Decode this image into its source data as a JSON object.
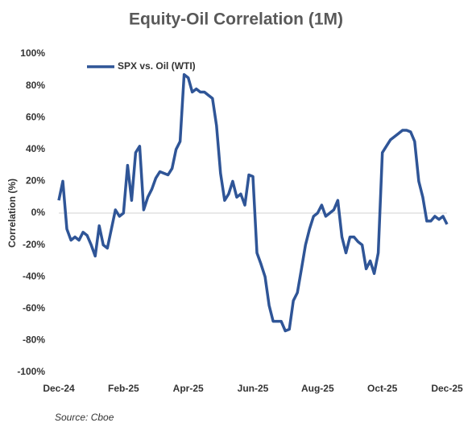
{
  "chart_data": {
    "type": "line",
    "title": "Equity-Oil Correlation (1M)",
    "y_label": "Correlation (%)",
    "source": "Source: Cboe",
    "categories": [
      "Dec-24",
      null,
      null,
      null,
      null,
      null,
      null,
      null,
      null,
      null,
      null,
      null,
      null,
      null,
      null,
      null,
      "Feb-25",
      null,
      null,
      null,
      null,
      null,
      null,
      null,
      null,
      null,
      null,
      null,
      null,
      null,
      null,
      null,
      "Apr-25",
      null,
      null,
      null,
      null,
      null,
      null,
      null,
      null,
      null,
      null,
      null,
      null,
      null,
      null,
      null,
      "Jun-25",
      null,
      null,
      null,
      null,
      null,
      null,
      null,
      null,
      null,
      null,
      null,
      null,
      null,
      null,
      null,
      "Aug-25",
      null,
      null,
      null,
      null,
      null,
      null,
      null,
      null,
      null,
      null,
      null,
      null,
      null,
      null,
      null,
      "Oct-25",
      null,
      null,
      null,
      null,
      null,
      null,
      null,
      null,
      null,
      null,
      null,
      null,
      null,
      null,
      null,
      "Dec-25"
    ],
    "series": [
      {
        "name": "SPX vs. Oil (WTI)",
        "color": "#2f5597",
        "values": [
          8,
          20,
          -10,
          -17,
          -15,
          -17,
          -12,
          -14,
          -20,
          -27,
          -8,
          -20,
          -22,
          -10,
          2,
          -2,
          0,
          30,
          8,
          38,
          42,
          2,
          10,
          15,
          22,
          26,
          25,
          24,
          28,
          40,
          45,
          87,
          85,
          76,
          78,
          76,
          76,
          74,
          72,
          55,
          25,
          8,
          12,
          20,
          10,
          12,
          5,
          24,
          23,
          -25,
          -32,
          -40,
          -58,
          -68,
          -68,
          -68,
          -74,
          -73,
          -55,
          -50,
          -35,
          -20,
          -10,
          -2,
          0,
          5,
          -2,
          0,
          2,
          8,
          -15,
          -25,
          -15,
          -15,
          -18,
          -20,
          -35,
          -30,
          -38,
          -25,
          38,
          42,
          46,
          48,
          50,
          52,
          52,
          51,
          45,
          20,
          10,
          -5,
          -5,
          -2,
          -4,
          -2,
          -7
        ]
      }
    ],
    "ylim": [
      -100,
      100
    ],
    "yticks": [
      {
        "value": 100,
        "label": "100%"
      },
      {
        "value": 80,
        "label": "80%"
      },
      {
        "value": 60,
        "label": "60%"
      },
      {
        "value": 40,
        "label": "40%"
      },
      {
        "value": 20,
        "label": "20%"
      },
      {
        "value": 0,
        "label": "0%"
      },
      {
        "value": -20,
        "label": "-20%"
      },
      {
        "value": -40,
        "label": "-40%"
      },
      {
        "value": -60,
        "label": "-60%"
      },
      {
        "value": -80,
        "label": "-80%"
      },
      {
        "value": -100,
        "label": "-100%"
      }
    ],
    "grid": false,
    "legend": "top-left"
  }
}
